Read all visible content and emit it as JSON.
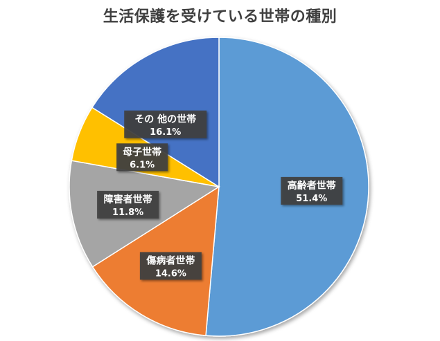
{
  "chart_data": {
    "type": "pie",
    "title": "生活保護を受けている世帯の種別",
    "start_angle": "12 o'clock",
    "direction": "clockwise",
    "slices": [
      {
        "label": "高齢者世帯",
        "value": 51.4,
        "value_label": "51.4%",
        "color": "#5b9bd5"
      },
      {
        "label": "傷病者世帯",
        "value": 14.6,
        "value_label": "14.6%",
        "color": "#ed7d31"
      },
      {
        "label": "障害者世帯",
        "value": 11.8,
        "value_label": "11.8%",
        "color": "#a5a5a5"
      },
      {
        "label": "母子世帯",
        "value": 6.1,
        "value_label": "6.1%",
        "color": "#ffc000"
      },
      {
        "label": "その 他の世帯",
        "value": 16.1,
        "value_label": "16.1%",
        "color": "#4472c4"
      }
    ]
  }
}
